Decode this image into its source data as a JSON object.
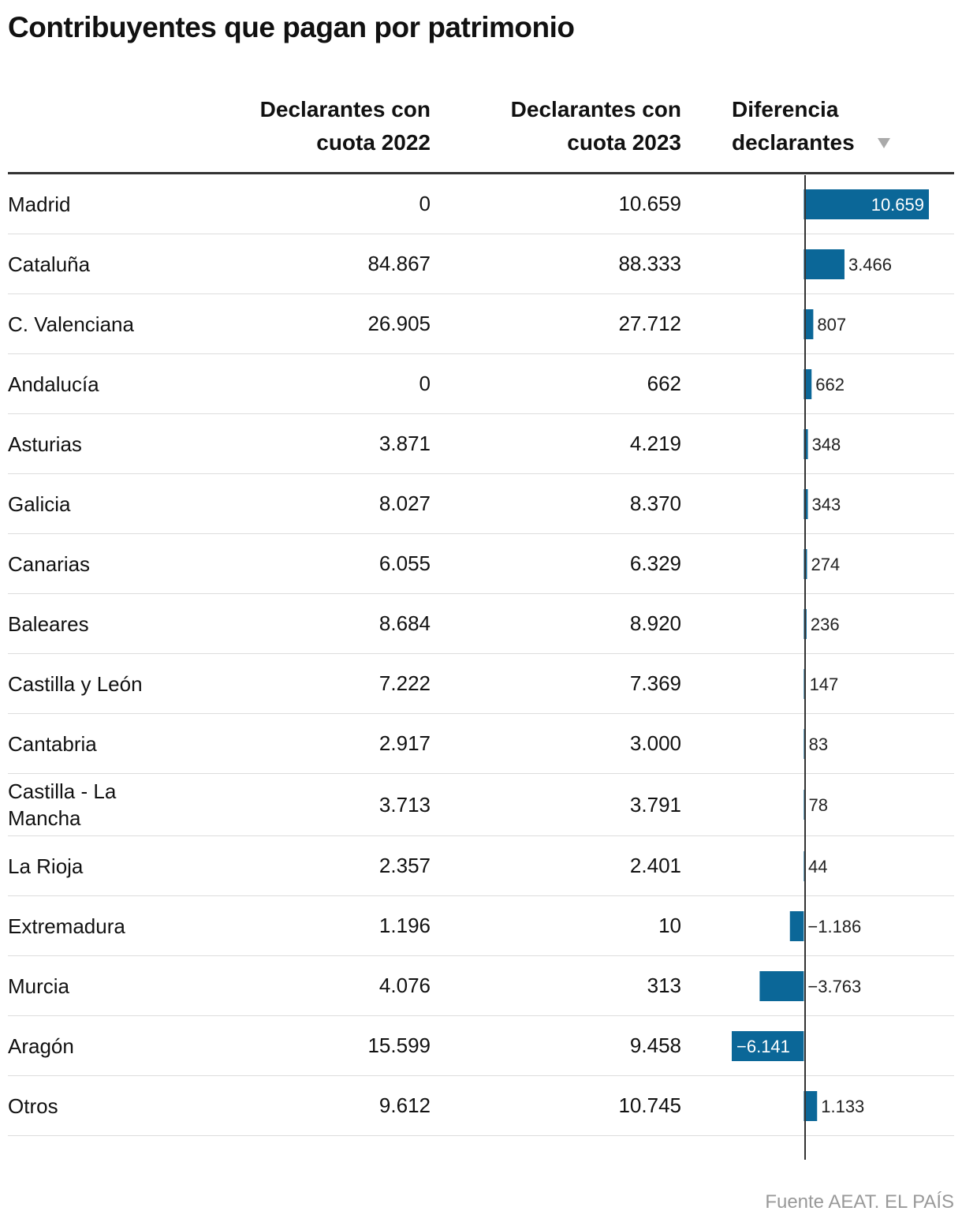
{
  "title": "Contribuyentes que pagan por patrimonio",
  "table": {
    "headers": [
      "Declarantes con cuota 2022",
      "Declarantes con cuota 2023",
      "Diferencia declarantes"
    ],
    "rows": [
      [
        "Madrid",
        "0",
        "10.659"
      ],
      [
        "Cataluña",
        "84.867",
        "88.333"
      ],
      [
        "C. Valenciana",
        "26.905",
        "27.712"
      ],
      [
        "Andalucía",
        "0",
        "662"
      ],
      [
        "Asturias",
        "3.871",
        "4.219"
      ],
      [
        "Galicia",
        "8.027",
        "8.370"
      ],
      [
        "Canarias",
        "6.055",
        "6.329"
      ],
      [
        "Baleares",
        "8.684",
        "8.920"
      ],
      [
        "Castilla y León",
        "7.222",
        "7.369"
      ],
      [
        "Cantabria",
        "2.917",
        "3.000"
      ],
      [
        "Castilla - La Mancha",
        "3.713",
        "3.791"
      ],
      [
        "La Rioja",
        "2.357",
        "2.401"
      ],
      [
        "Extremadura",
        "1.196",
        "10"
      ],
      [
        "Murcia",
        "4.076",
        "313"
      ],
      [
        "Aragón",
        "15.599",
        "9.458"
      ],
      [
        "Otros",
        "9.612",
        "10.745"
      ]
    ],
    "diferencia": {
      "values": [
        10659,
        3466,
        807,
        662,
        348,
        343,
        274,
        236,
        147,
        83,
        78,
        44,
        -1186,
        -3763,
        -6141,
        1133
      ],
      "value_labels": [
        "10.659",
        "3.466",
        "807",
        "662",
        "348",
        "343",
        "274",
        "236",
        "147",
        "83",
        "78",
        "44",
        "−1.186",
        "−3.763",
        "−6.141",
        "1.133"
      ],
      "color": "#0b6798"
    }
  },
  "source": "Fuente AEAT. EL PAÍS"
}
